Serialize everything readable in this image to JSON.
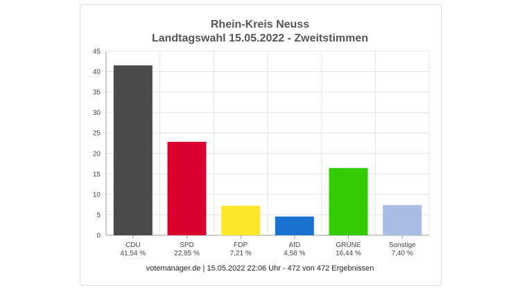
{
  "chart_data": {
    "type": "bar",
    "title": "Rhein-Kreis Neuss",
    "subtitle": "Landtagswahl 15.05.2022  - Zweitstimmen",
    "categories": [
      "CDU",
      "SPD",
      "FDP",
      "AfD",
      "GRÜNE",
      "Sonstige"
    ],
    "values": [
      41.54,
      22.85,
      7.21,
      4.58,
      16.44,
      7.4
    ],
    "value_labels": [
      "41,54 %",
      "22,85 %",
      "7,21 %",
      "4,58 %",
      "16,44 %",
      "7,40 %"
    ],
    "colors": [
      "#4a4a4a",
      "#d9002f",
      "#fbe82c",
      "#1b73d1",
      "#33cc00",
      "#a9bde4"
    ],
    "ylim": [
      0,
      45
    ],
    "yticks": [
      0,
      5,
      10,
      15,
      20,
      25,
      30,
      35,
      40,
      45
    ],
    "grid": true
  },
  "footer": "votemanager.de | 15.05.2022 22:06 Uhr - 472 von 472 Ergebnissen"
}
